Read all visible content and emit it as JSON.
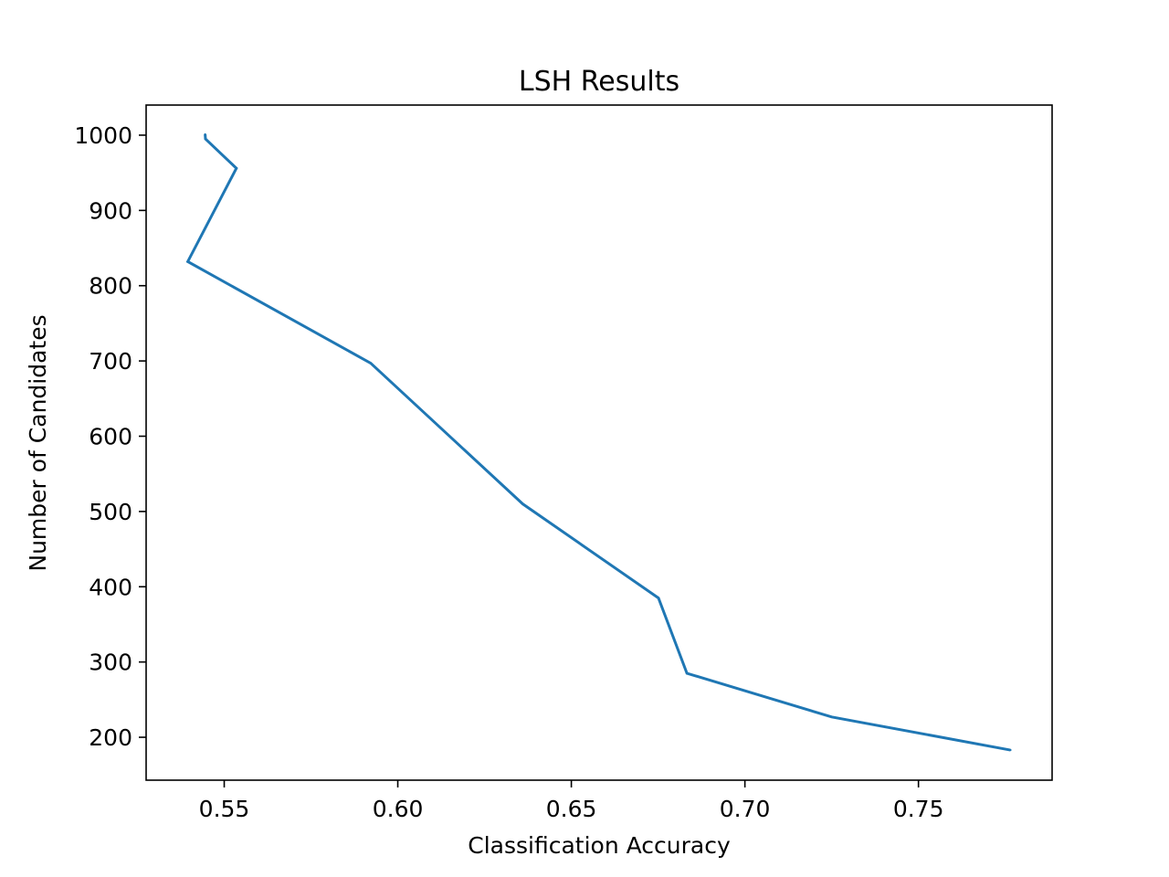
{
  "chart_data": {
    "type": "line",
    "title": "LSH Results",
    "xlabel": "Classification Accuracy",
    "ylabel": "Number of Candidates",
    "xlim": [
      0.5275,
      0.7885
    ],
    "ylim": [
      143,
      1040
    ],
    "xticks": [
      0.55,
      0.6,
      0.65,
      0.7,
      0.75
    ],
    "xtick_labels": [
      "0.55",
      "0.60",
      "0.65",
      "0.70",
      "0.75"
    ],
    "yticks": [
      200,
      300,
      400,
      500,
      600,
      700,
      800,
      900,
      1000
    ],
    "ytick_labels": [
      "200",
      "300",
      "400",
      "500",
      "600",
      "700",
      "800",
      "900",
      "1000"
    ],
    "grid": false,
    "series": [
      {
        "color": "#1f77b4",
        "x": [
          0.5445,
          0.5446,
          0.5535,
          0.5395,
          0.5922,
          0.636,
          0.6751,
          0.6833,
          0.725,
          0.7765
        ],
        "y": [
          1001,
          995,
          956,
          832,
          697,
          510,
          385,
          285,
          227,
          183
        ]
      }
    ]
  }
}
